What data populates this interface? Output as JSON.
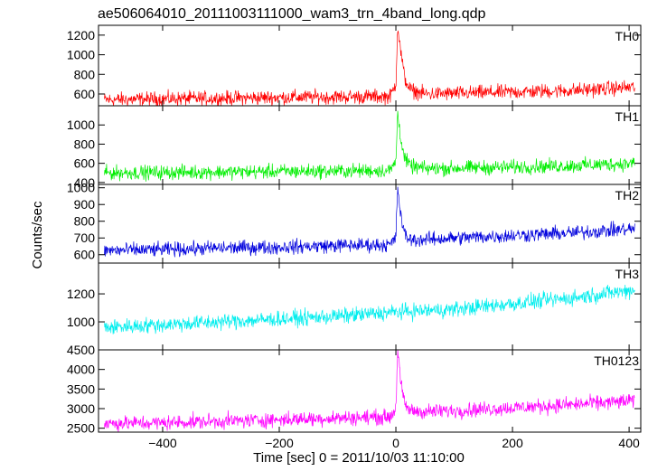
{
  "chart_data": {
    "type": "line",
    "title": "ae506064010_20111003111000_wam3_trn_4band_long.qdp",
    "xlabel": "Time [sec] 0 = 2011/10/03 11:10:00",
    "ylabel": "Counts/sec",
    "xlim": [
      -510,
      420
    ],
    "x_ticks": [
      -400,
      -200,
      0,
      200,
      400
    ],
    "panels": [
      {
        "name": "TH0",
        "color": "#ff0000",
        "ylim": [
          480,
          1300
        ],
        "y_ticks": [
          600,
          800,
          1000,
          1200
        ],
        "x": [
          -500,
          -400,
          -300,
          -200,
          -100,
          -10,
          0,
          3,
          8,
          15,
          25,
          50,
          100,
          200,
          300,
          410
        ],
        "y": [
          540,
          550,
          555,
          565,
          570,
          575,
          700,
          1300,
          1050,
          760,
          640,
          600,
          605,
          620,
          635,
          670
        ]
      },
      {
        "name": "TH1",
        "color": "#00ee00",
        "ylim": [
          380,
          1200
        ],
        "y_ticks": [
          400,
          600,
          800,
          1000
        ],
        "x": [
          -500,
          -400,
          -300,
          -200,
          -100,
          -10,
          0,
          3,
          8,
          15,
          25,
          50,
          100,
          200,
          300,
          410
        ],
        "y": [
          500,
          505,
          510,
          515,
          520,
          525,
          620,
          1130,
          880,
          650,
          570,
          545,
          550,
          560,
          575,
          600
        ]
      },
      {
        "name": "TH2",
        "color": "#0000dd",
        "ylim": [
          550,
          1020
        ],
        "y_ticks": [
          600,
          700,
          800,
          900,
          1000
        ],
        "x": [
          -500,
          -400,
          -300,
          -200,
          -100,
          -10,
          0,
          3,
          8,
          15,
          25,
          50,
          100,
          200,
          300,
          410
        ],
        "y": [
          625,
          630,
          640,
          645,
          655,
          660,
          700,
          1010,
          840,
          720,
          690,
          690,
          700,
          715,
          730,
          755
        ]
      },
      {
        "name": "TH3",
        "color": "#00eeee",
        "ylim": [
          800,
          1420
        ],
        "y_ticks": [
          1000,
          1200
        ],
        "x": [
          -500,
          -400,
          -300,
          -200,
          -100,
          0,
          100,
          200,
          300,
          410
        ],
        "y": [
          960,
          980,
          1000,
          1020,
          1040,
          1070,
          1090,
          1130,
          1170,
          1230
        ]
      },
      {
        "name": "TH0123",
        "color": "#ff00ff",
        "ylim": [
          2400,
          4500
        ],
        "y_ticks": [
          2500,
          3000,
          3500,
          4000,
          4500
        ],
        "x": [
          -500,
          -400,
          -300,
          -200,
          -100,
          -10,
          0,
          3,
          8,
          15,
          25,
          50,
          100,
          200,
          300,
          410
        ],
        "y": [
          2620,
          2640,
          2680,
          2720,
          2760,
          2790,
          3000,
          4600,
          3700,
          3100,
          2950,
          2920,
          2950,
          3020,
          3100,
          3200
        ]
      }
    ]
  }
}
